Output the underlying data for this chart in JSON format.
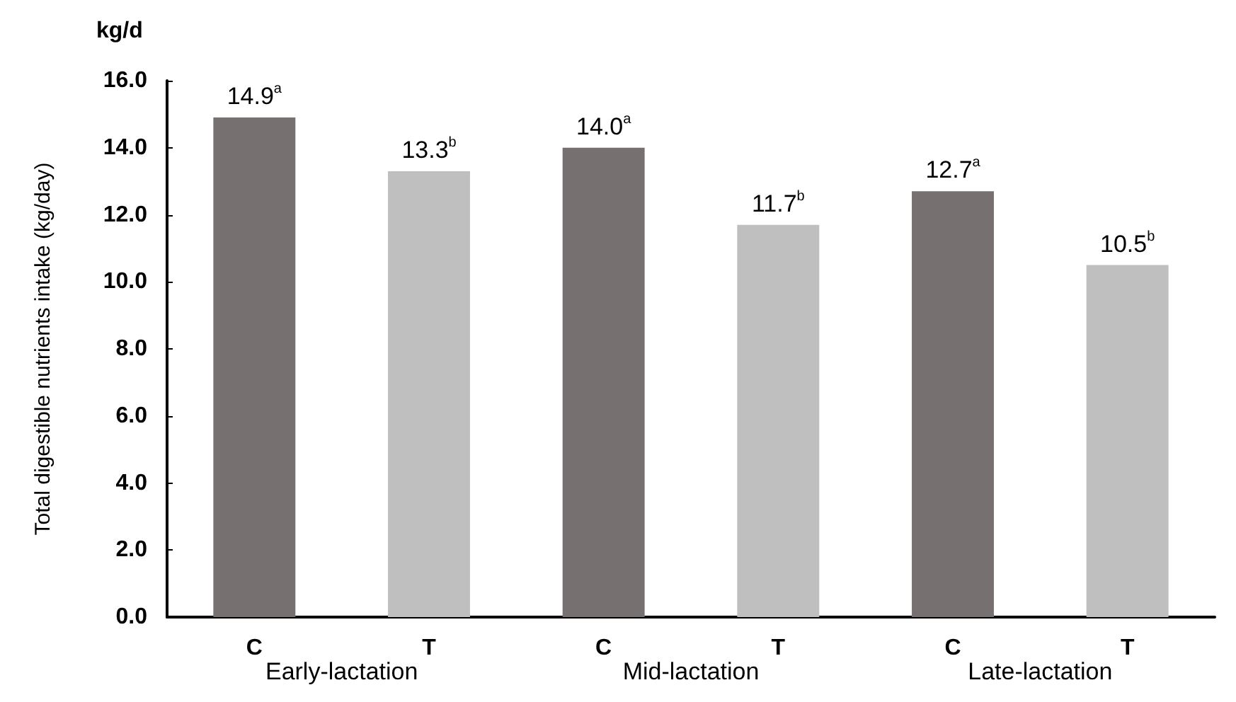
{
  "chart_data": {
    "type": "bar",
    "ylabel": "Total digestible nutrients intake (kg/day)",
    "categories": [
      "C",
      "T",
      "C",
      "T",
      "C",
      "T"
    ],
    "values": [
      14.9,
      13.3,
      14.0,
      11.7,
      12.7,
      10.5
    ],
    "colors": [
      "#767170",
      "#bfbfbf",
      "#767170",
      "#bfbfbf",
      "#767170",
      "#bfbfbf"
    ],
    "value_labels": [
      "14.9$^{a}$",
      "13.3$^{b}$",
      "14.0$^{a}$",
      "11.7$^{b}$",
      "12.7$^{a}$",
      "10.5$^{b}$"
    ],
    "ylim": [
      0,
      16
    ],
    "yticks": [
      {
        "value": 0,
        "label": "0.0"
      },
      {
        "value": 2,
        "label": "2.0"
      },
      {
        "value": 4,
        "label": "4.0"
      },
      {
        "value": 6,
        "label": "6.0"
      },
      {
        "value": 8,
        "label": "8.0"
      },
      {
        "value": 10,
        "label": "10.0"
      },
      {
        "value": 12,
        "label": "12.0"
      },
      {
        "value": 14,
        "label": "14.0"
      },
      {
        "value": 16,
        "label": "16.0"
      }
    ],
    "annotations": [
      "kg/d",
      "Early-lactation",
      "Mid-lactation",
      "Late-lactation"
    ],
    "grid": false
  }
}
